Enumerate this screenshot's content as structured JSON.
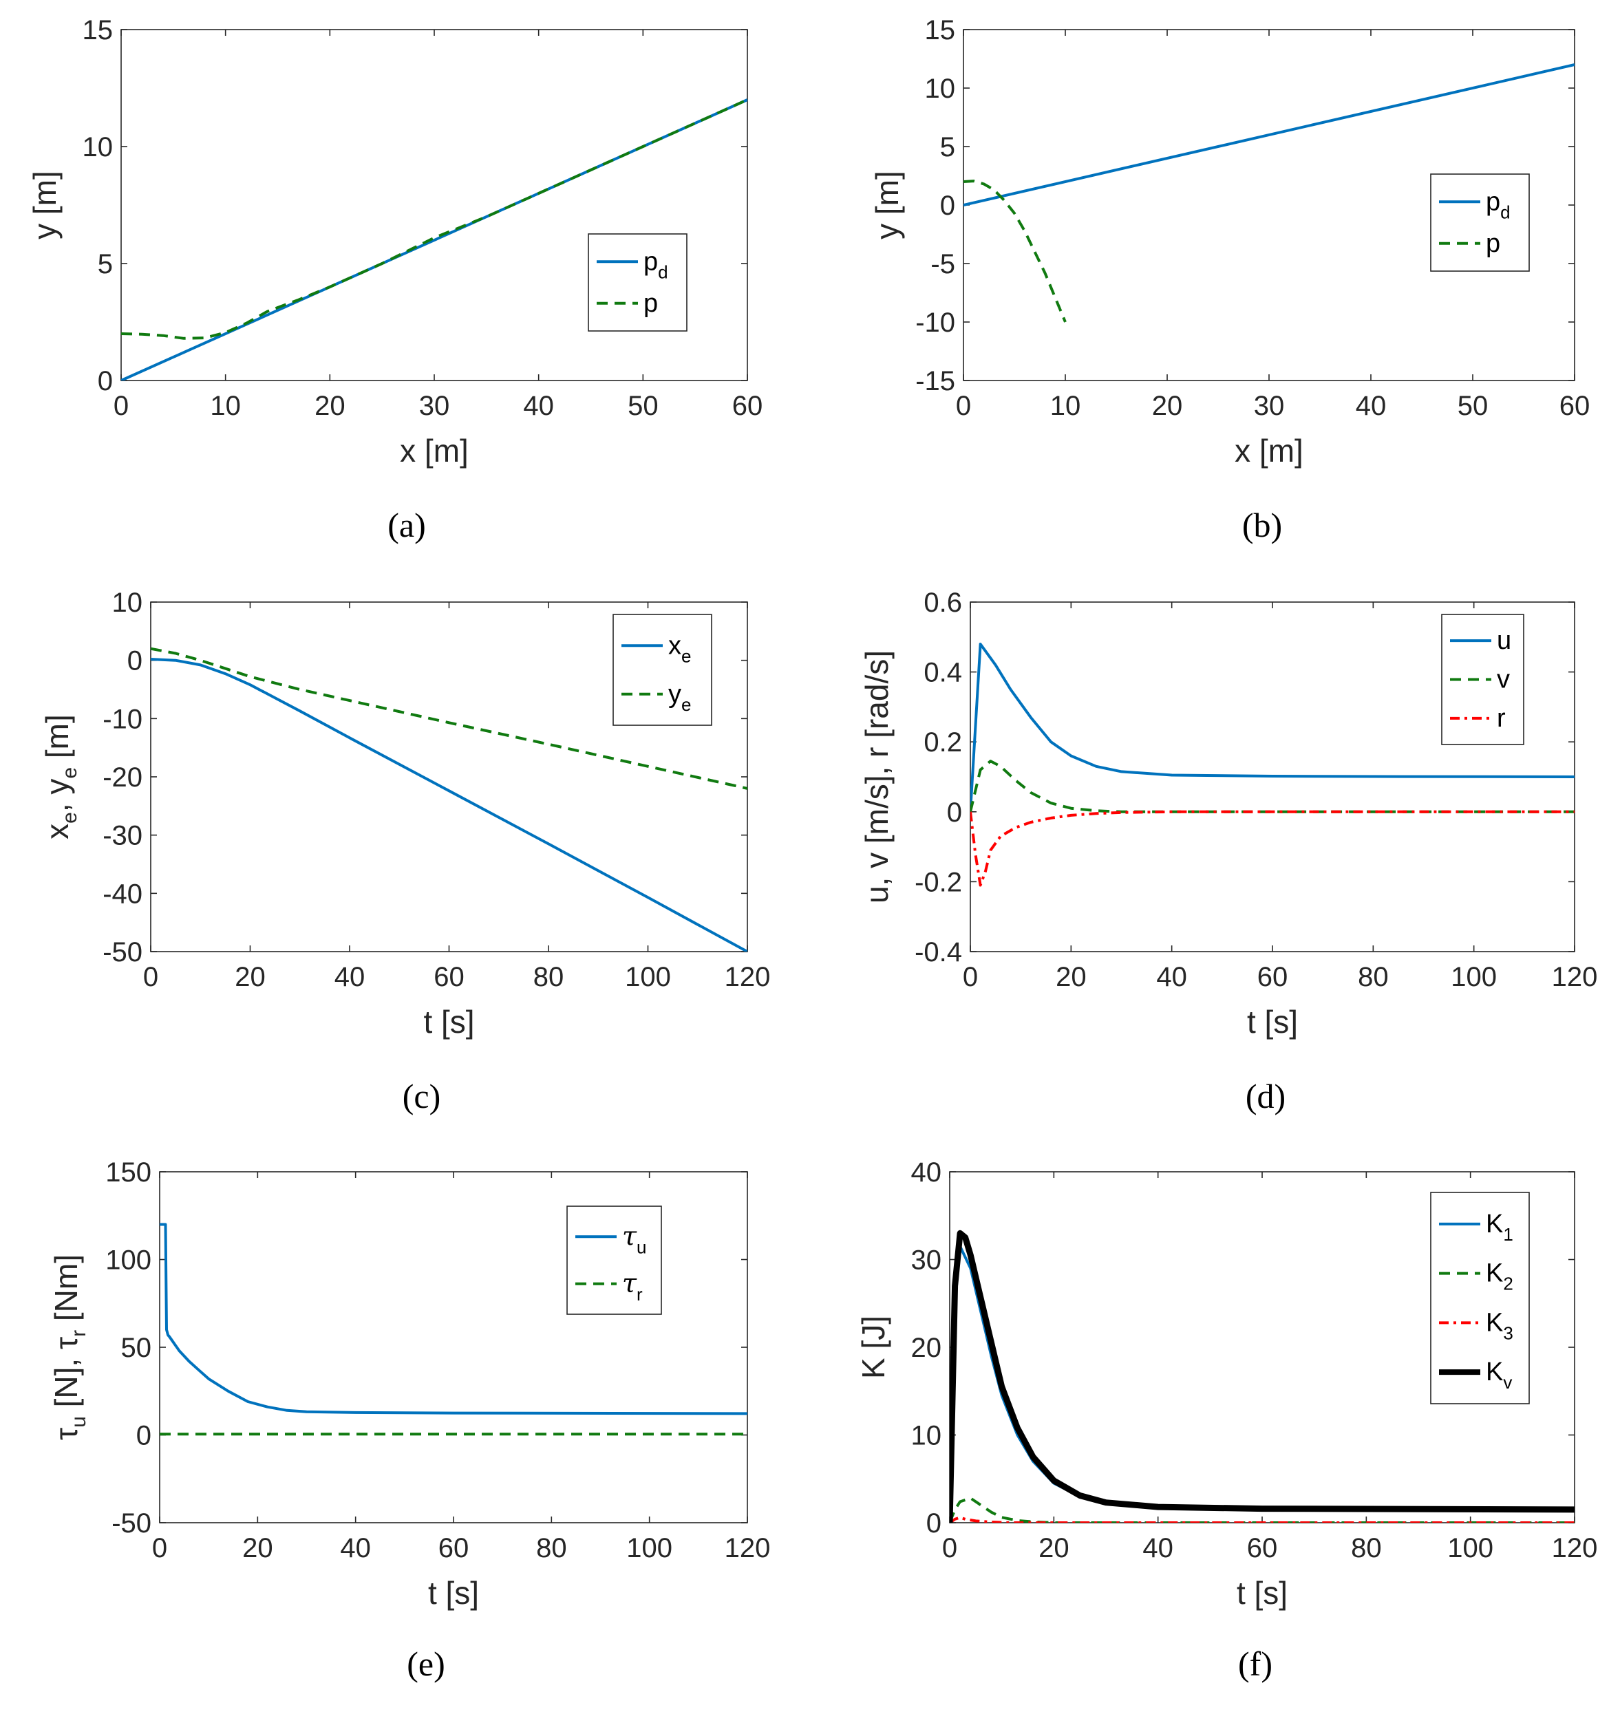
{
  "colors": {
    "blue": "#0072BD",
    "green": "#107a10",
    "red": "#ff0000",
    "black": "#000000",
    "axis": "#262626"
  },
  "chart_data": [
    {
      "id": "a",
      "type": "line",
      "caption": "(a)",
      "xlabel": "x [m]",
      "ylabel": "y [m]",
      "xlim": [
        0,
        60
      ],
      "ylim": [
        0,
        15
      ],
      "xticks": [
        0,
        10,
        20,
        30,
        40,
        50,
        60
      ],
      "yticks": [
        0,
        5,
        10,
        15
      ],
      "legend_position": "right-middle",
      "series": [
        {
          "name": "p",
          "sub": "d",
          "style": "solid",
          "color": "blue",
          "x": [
            0,
            60
          ],
          "y": [
            0,
            12
          ]
        },
        {
          "name": "p",
          "sub": "",
          "style": "dashed",
          "color": "green",
          "x": [
            0,
            2,
            4,
            6,
            8,
            10,
            12,
            14,
            17,
            20,
            25,
            30,
            35,
            40,
            45,
            50,
            55,
            60
          ],
          "y": [
            2.0,
            1.98,
            1.92,
            1.8,
            1.82,
            2.05,
            2.45,
            2.95,
            3.45,
            4.0,
            5.0,
            6.1,
            7.0,
            8.0,
            9.0,
            10.0,
            11.0,
            12.0
          ]
        }
      ]
    },
    {
      "id": "b",
      "type": "line",
      "caption": "(b)",
      "xlabel": "x [m]",
      "ylabel": "y [m]",
      "xlim": [
        0,
        60
      ],
      "ylim": [
        -15,
        15
      ],
      "xticks": [
        0,
        10,
        20,
        30,
        40,
        50,
        60
      ],
      "yticks": [
        -15,
        -10,
        -5,
        0,
        5,
        10,
        15
      ],
      "legend_position": "right-middle",
      "series": [
        {
          "name": "p",
          "sub": "d",
          "style": "solid",
          "color": "blue",
          "x": [
            0,
            60
          ],
          "y": [
            0,
            12
          ]
        },
        {
          "name": "p",
          "sub": "",
          "style": "dashed",
          "color": "green",
          "x": [
            0,
            1,
            2,
            3,
            4,
            5,
            6,
            7,
            8,
            9,
            10
          ],
          "y": [
            2.0,
            2.05,
            1.8,
            1.3,
            0.4,
            -0.7,
            -2.2,
            -4.0,
            -5.8,
            -7.9,
            -10.0
          ]
        }
      ]
    },
    {
      "id": "c",
      "type": "line",
      "caption": "(c)",
      "xlabel": "t [s]",
      "ylabel": "x_e, y_e [m]",
      "xlim": [
        0,
        120
      ],
      "ylim": [
        -50,
        10
      ],
      "xticks": [
        0,
        20,
        40,
        60,
        80,
        100,
        120
      ],
      "yticks": [
        -50,
        -40,
        -30,
        -20,
        -10,
        0,
        10
      ],
      "legend_position": "top-right",
      "series": [
        {
          "name": "x",
          "sub": "e",
          "style": "solid",
          "color": "blue",
          "x": [
            0,
            5,
            10,
            15,
            20,
            30,
            40,
            60,
            80,
            100,
            120
          ],
          "y": [
            0.2,
            0.0,
            -0.8,
            -2.3,
            -4.2,
            -8.7,
            -13.3,
            -22.4,
            -31.5,
            -40.7,
            -50.0
          ]
        },
        {
          "name": "y",
          "sub": "e",
          "style": "dashed",
          "color": "green",
          "x": [
            0,
            5,
            10,
            20,
            30,
            40,
            60,
            80,
            100,
            120
          ],
          "y": [
            2.0,
            1.2,
            0.0,
            -2.8,
            -5.0,
            -6.9,
            -10.7,
            -14.4,
            -18.2,
            -22.0
          ]
        }
      ]
    },
    {
      "id": "d",
      "type": "line",
      "caption": "(d)",
      "xlabel": "t [s]",
      "ylabel": "u, v [m/s], r [rad/s]",
      "xlim": [
        0,
        120
      ],
      "ylim": [
        -0.4,
        0.6
      ],
      "xticks": [
        0,
        20,
        40,
        60,
        80,
        100,
        120
      ],
      "yticks": [
        -0.4,
        -0.2,
        0,
        0.2,
        0.4,
        0.6
      ],
      "legend_position": "top-right",
      "series": [
        {
          "name": "u",
          "sub": "",
          "style": "solid",
          "color": "blue",
          "x": [
            0,
            2,
            5,
            8,
            12,
            16,
            20,
            25,
            30,
            40,
            60,
            80,
            120
          ],
          "y": [
            0.0,
            0.48,
            0.42,
            0.35,
            0.27,
            0.2,
            0.16,
            0.13,
            0.115,
            0.105,
            0.102,
            0.101,
            0.1
          ]
        },
        {
          "name": "v",
          "sub": "",
          "style": "dashed",
          "color": "green",
          "x": [
            0,
            2,
            4,
            6,
            9,
            12,
            16,
            20,
            25,
            30,
            120
          ],
          "y": [
            0.0,
            0.12,
            0.145,
            0.13,
            0.09,
            0.055,
            0.025,
            0.01,
            0.003,
            0.0,
            0.0
          ]
        },
        {
          "name": "r",
          "sub": "",
          "style": "dashdot",
          "color": "red",
          "x": [
            0,
            1,
            2,
            3,
            4,
            6,
            9,
            12,
            16,
            20,
            25,
            30,
            40,
            120
          ],
          "y": [
            0.0,
            -0.12,
            -0.21,
            -0.17,
            -0.11,
            -0.07,
            -0.045,
            -0.03,
            -0.018,
            -0.01,
            -0.005,
            -0.002,
            0.0,
            0.0
          ]
        }
      ]
    },
    {
      "id": "e",
      "type": "line",
      "caption": "(e)",
      "xlabel": "t [s]",
      "ylabel": "τ_u [N], τ_r [Nm]",
      "xlim": [
        0,
        120
      ],
      "ylim": [
        -50,
        150
      ],
      "xticks": [
        0,
        20,
        40,
        60,
        80,
        100,
        120
      ],
      "yticks": [
        -50,
        0,
        50,
        100,
        150
      ],
      "legend_position": "top-right",
      "series": [
        {
          "name": "τ",
          "sub": "u",
          "style": "solid",
          "color": "blue",
          "x": [
            0,
            1.2,
            1.4,
            1.7,
            2,
            4,
            6,
            8,
            10,
            14,
            18,
            22,
            26,
            30,
            40,
            60,
            120
          ],
          "y": [
            120,
            120,
            60,
            57,
            56,
            48,
            42,
            37,
            32,
            25,
            19,
            16,
            14,
            13.2,
            12.8,
            12.5,
            12.2
          ]
        },
        {
          "name": "τ",
          "sub": "r",
          "style": "dashed",
          "color": "green",
          "x": [
            0,
            120
          ],
          "y": [
            0.5,
            0.5
          ]
        }
      ]
    },
    {
      "id": "f",
      "type": "line",
      "caption": "(f)",
      "xlabel": "t [s]",
      "ylabel": "K [J]",
      "xlim": [
        0,
        120
      ],
      "ylim": [
        0,
        40
      ],
      "xticks": [
        0,
        20,
        40,
        60,
        80,
        100,
        120
      ],
      "yticks": [
        0,
        10,
        20,
        30,
        40
      ],
      "legend_position": "top-right",
      "series": [
        {
          "name": "K",
          "sub": "1",
          "style": "solid",
          "color": "blue",
          "width": 4,
          "x": [
            0,
            1,
            2,
            4,
            6,
            8,
            10,
            13,
            16,
            20,
            25,
            30,
            40,
            60,
            120
          ],
          "y": [
            0,
            25,
            31.5,
            29,
            24,
            19,
            14.5,
            10,
            7,
            4.5,
            3,
            2.2,
            1.7,
            1.6,
            1.5
          ]
        },
        {
          "name": "K",
          "sub": "2",
          "style": "dashed",
          "color": "green",
          "width": 4,
          "x": [
            0,
            1,
            2,
            4,
            6,
            8,
            10,
            13,
            16,
            20,
            120
          ],
          "y": [
            0,
            1.5,
            2.4,
            2.8,
            2.0,
            1.2,
            0.6,
            0.25,
            0.1,
            0,
            0
          ]
        },
        {
          "name": "K",
          "sub": "3",
          "style": "dashdot",
          "color": "red",
          "width": 4,
          "x": [
            0,
            1,
            2,
            3,
            5,
            8,
            12,
            120
          ],
          "y": [
            0,
            0.4,
            0.6,
            0.4,
            0.2,
            0.08,
            0,
            0
          ]
        },
        {
          "name": "K",
          "sub": "v",
          "style": "solid",
          "color": "black",
          "width": 9,
          "x": [
            0,
            1,
            2,
            3,
            4,
            6,
            8,
            10,
            13,
            16,
            20,
            25,
            30,
            40,
            60,
            120
          ],
          "y": [
            0,
            27,
            33,
            32.5,
            30.5,
            25.5,
            20.5,
            15.5,
            10.8,
            7.5,
            4.8,
            3.1,
            2.3,
            1.8,
            1.6,
            1.5
          ]
        }
      ]
    }
  ]
}
